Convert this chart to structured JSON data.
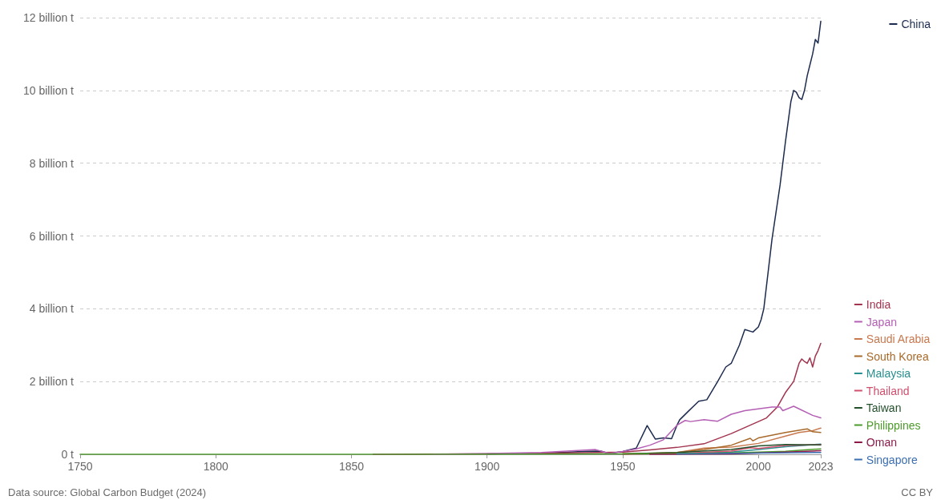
{
  "chart_data": {
    "type": "line",
    "xlim": [
      1750,
      2023
    ],
    "xticks": [
      1750,
      1800,
      1850,
      1900,
      1950,
      2000,
      2023
    ],
    "ylim": [
      0,
      12
    ],
    "yticks": [
      {
        "value": 0,
        "label": "0 t"
      },
      {
        "value": 2,
        "label": "2 billion t"
      },
      {
        "value": 4,
        "label": "4 billion t"
      },
      {
        "value": 6,
        "label": "6 billion t"
      },
      {
        "value": 8,
        "label": "8 billion t"
      },
      {
        "value": 10,
        "label": "10 billion t"
      },
      {
        "value": 12,
        "label": "12 billion t"
      }
    ],
    "grid": "y",
    "legend": "right",
    "marker": "none",
    "line_style": "solid",
    "annotations": [
      "Data source: Global Carbon Budget (2024)",
      "CC BY"
    ],
    "series": [
      {
        "name": "China",
        "color": "#1d2b4f",
        "x": [
          1900,
          1920,
          1937,
          1942,
          1945,
          1950,
          1955,
          1959,
          1962,
          1965,
          1968,
          1970,
          1971,
          1974,
          1978,
          1981,
          1985,
          1988,
          1990,
          1993,
          1995,
          1998,
          2000,
          2001,
          2002,
          2005,
          2008,
          2010,
          2012,
          2013,
          2014,
          2015,
          2016,
          2017,
          2018,
          2019,
          2020,
          2021,
          2022,
          2023
        ],
        "values": [
          0.01,
          0.03,
          0.08,
          0.09,
          0.02,
          0.08,
          0.17,
          0.79,
          0.42,
          0.45,
          0.43,
          0.8,
          0.95,
          1.17,
          1.46,
          1.5,
          2.0,
          2.4,
          2.5,
          3.0,
          3.43,
          3.36,
          3.5,
          3.7,
          4.0,
          5.9,
          7.4,
          8.6,
          9.7,
          10.0,
          9.95,
          9.8,
          9.75,
          10.0,
          10.4,
          10.7,
          11.0,
          11.4,
          11.3,
          11.9
        ]
      },
      {
        "name": "India",
        "color": "#a2344f",
        "x": [
          1858,
          1900,
          1950,
          1960,
          1970,
          1980,
          1990,
          2000,
          2003,
          2007,
          2010,
          2013,
          2015,
          2016,
          2017,
          2018,
          2019,
          2020,
          2021,
          2022,
          2023
        ],
        "values": [
          0,
          0.01,
          0.06,
          0.12,
          0.19,
          0.29,
          0.57,
          0.9,
          1.0,
          1.3,
          1.7,
          2.0,
          2.5,
          2.62,
          2.55,
          2.5,
          2.65,
          2.4,
          2.7,
          2.85,
          3.05
        ]
      },
      {
        "name": "Japan",
        "color": "#b45fb4",
        "x": [
          1880,
          1900,
          1920,
          1940,
          1945,
          1950,
          1955,
          1960,
          1965,
          1970,
          1973,
          1975,
          1980,
          1985,
          1990,
          1995,
          2000,
          2005,
          2008,
          2009,
          2013,
          2015,
          2020,
          2023
        ],
        "values": [
          0,
          0.02,
          0.05,
          0.13,
          0.02,
          0.08,
          0.15,
          0.25,
          0.4,
          0.8,
          0.93,
          0.9,
          0.95,
          0.91,
          1.1,
          1.2,
          1.25,
          1.3,
          1.3,
          1.2,
          1.32,
          1.25,
          1.07,
          1.0
        ]
      },
      {
        "name": "Saudi Arabia",
        "color": "#c8794f",
        "x": [
          1950,
          1970,
          1980,
          1990,
          2000,
          2010,
          2015,
          2020,
          2023
        ],
        "values": [
          0.01,
          0.05,
          0.17,
          0.2,
          0.3,
          0.5,
          0.6,
          0.65,
          0.72
        ]
      },
      {
        "name": "South Korea",
        "color": "#a86a2a",
        "x": [
          1950,
          1960,
          1970,
          1980,
          1990,
          1997,
          1998,
          2000,
          2010,
          2018,
          2020,
          2023
        ],
        "values": [
          0.01,
          0.02,
          0.05,
          0.13,
          0.25,
          0.44,
          0.37,
          0.45,
          0.6,
          0.7,
          0.62,
          0.6
        ]
      },
      {
        "name": "Malaysia",
        "color": "#2a8f8f",
        "x": [
          1970,
          1990,
          2000,
          2010,
          2023
        ],
        "values": [
          0.01,
          0.06,
          0.13,
          0.21,
          0.28
        ]
      },
      {
        "name": "Thailand",
        "color": "#d0506e",
        "x": [
          1950,
          1970,
          1990,
          1997,
          2000,
          2010,
          2023
        ],
        "values": [
          0,
          0.02,
          0.09,
          0.18,
          0.16,
          0.24,
          0.27
        ]
      },
      {
        "name": "Taiwan",
        "color": "#24502c",
        "x": [
          1950,
          1970,
          1990,
          2000,
          2010,
          2023
        ],
        "values": [
          0.01,
          0.05,
          0.13,
          0.23,
          0.27,
          0.26
        ]
      },
      {
        "name": "Philippines",
        "color": "#4c9a2a",
        "x": [
          1750,
          1850,
          1950,
          1970,
          1990,
          2010,
          2023
        ],
        "values": [
          0,
          0,
          0.01,
          0.02,
          0.04,
          0.08,
          0.15
        ]
      },
      {
        "name": "Oman",
        "color": "#8b1a4a",
        "x": [
          1960,
          1990,
          2010,
          2023
        ],
        "values": [
          0,
          0.01,
          0.06,
          0.1
        ]
      },
      {
        "name": "Singapore",
        "color": "#3c6fb0",
        "x": [
          1970,
          1990,
          2023
        ],
        "values": [
          0.01,
          0.03,
          0.05
        ]
      }
    ]
  }
}
